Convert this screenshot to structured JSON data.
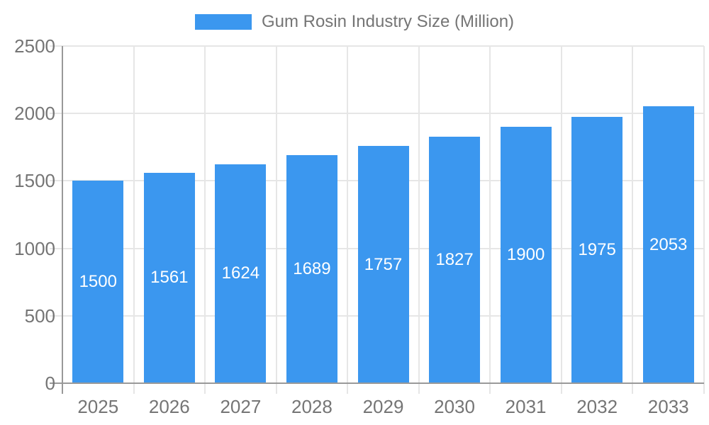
{
  "chart_data": {
    "type": "bar",
    "title": "Gum Rosin Industry Size (Million)",
    "categories": [
      "2025",
      "2026",
      "2027",
      "2028",
      "2029",
      "2030",
      "2031",
      "2032",
      "2033"
    ],
    "values": [
      1500,
      1561,
      1624,
      1689,
      1757,
      1827,
      1900,
      1975,
      2053
    ],
    "series": [
      {
        "name": "Gum Rosin Industry Size (Million)",
        "values": [
          1500,
          1561,
          1624,
          1689,
          1757,
          1827,
          1900,
          1975,
          2053
        ]
      }
    ],
    "xlabel": "",
    "ylabel": "",
    "ylim": [
      0,
      2500
    ],
    "yticks": [
      0,
      500,
      1000,
      1500,
      2000,
      2500
    ],
    "grid": true,
    "legend_position": "top",
    "value_labels_position": "inside-center",
    "colors": {
      "bar": "#3B97EF",
      "axis": "#999999",
      "gridline": "#E6E6E6",
      "tick_label_text": "#757575",
      "legend_text": "#757575",
      "value_label_text": "#FFFFFF",
      "background": "#FFFFFF"
    }
  }
}
